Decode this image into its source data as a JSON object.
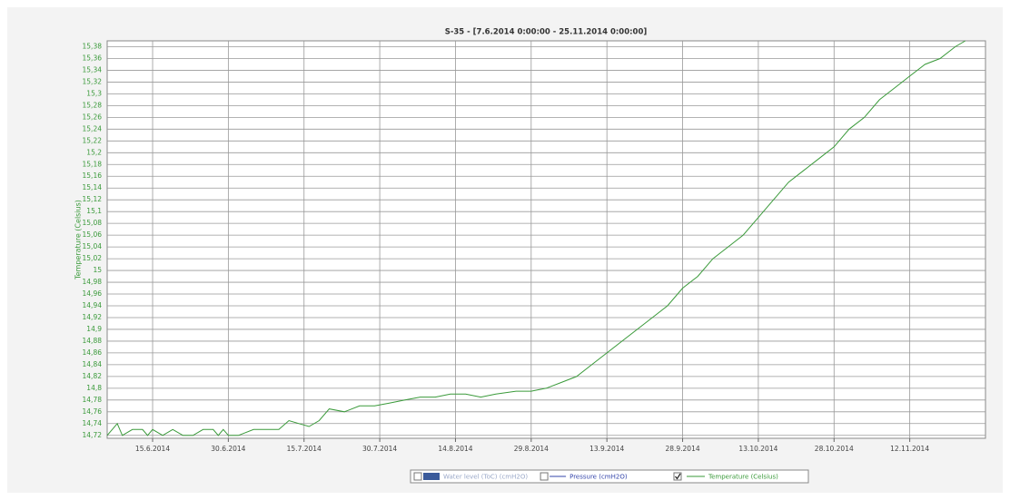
{
  "chart_data": {
    "type": "line",
    "title": "S-35 - [7.6.2014 0:00:00 - 25.11.2014 0:00:00]",
    "y_label": "Temperature (Celsius)",
    "grid": true,
    "legend_position": "bottom",
    "legend_unchecked": [
      "Water level (ToC) (cmH2O)",
      "Pressure (cmH2O)"
    ],
    "legend_unchecked_colors": [
      "#3a5a9a",
      "#3344aa"
    ],
    "x": [
      "2014-06-06",
      "2014-06-08",
      "2014-06-09",
      "2014-06-11",
      "2014-06-13",
      "2014-06-14",
      "2014-06-15",
      "2014-06-17",
      "2014-06-19",
      "2014-06-21",
      "2014-06-23",
      "2014-06-25",
      "2014-06-27",
      "2014-06-28",
      "2014-06-29",
      "2014-06-30",
      "2014-07-02",
      "2014-07-05",
      "2014-07-08",
      "2014-07-10",
      "2014-07-12",
      "2014-07-14",
      "2014-07-16",
      "2014-07-18",
      "2014-07-20",
      "2014-07-23",
      "2014-07-26",
      "2014-07-29",
      "2014-08-01",
      "2014-08-04",
      "2014-08-07",
      "2014-08-10",
      "2014-08-13",
      "2014-08-16",
      "2014-08-19",
      "2014-08-22",
      "2014-08-26",
      "2014-08-29",
      "2014-09-01",
      "2014-09-04",
      "2014-09-07",
      "2014-09-10",
      "2014-09-13",
      "2014-09-16",
      "2014-09-19",
      "2014-09-22",
      "2014-09-25",
      "2014-09-28",
      "2014-10-01",
      "2014-10-04",
      "2014-10-07",
      "2014-10-10",
      "2014-10-13",
      "2014-10-16",
      "2014-10-19",
      "2014-10-22",
      "2014-10-25",
      "2014-10-28",
      "2014-10-31",
      "2014-11-03",
      "2014-11-06",
      "2014-11-09",
      "2014-11-12",
      "2014-11-15",
      "2014-11-18",
      "2014-11-21",
      "2014-11-23"
    ],
    "series": [
      {
        "name": "Temperature (Celsius)",
        "color": "#3a9a3a",
        "values": [
          14.72,
          14.74,
          14.72,
          14.73,
          14.73,
          14.72,
          14.73,
          14.72,
          14.73,
          14.72,
          14.72,
          14.73,
          14.73,
          14.72,
          14.73,
          14.72,
          14.72,
          14.73,
          14.73,
          14.73,
          14.745,
          14.74,
          14.735,
          14.745,
          14.765,
          14.76,
          14.77,
          14.77,
          14.775,
          14.78,
          14.785,
          14.785,
          14.79,
          14.79,
          14.785,
          14.79,
          14.795,
          14.795,
          14.8,
          14.81,
          14.82,
          14.84,
          14.86,
          14.88,
          14.9,
          14.92,
          14.94,
          14.97,
          14.99,
          15.02,
          15.04,
          15.06,
          15.09,
          15.12,
          15.15,
          15.17,
          15.19,
          15.21,
          15.24,
          15.26,
          15.29,
          15.31,
          15.33,
          15.35,
          15.36,
          15.38,
          15.39
        ]
      }
    ],
    "xlim": [
      "2014-06-06",
      "2014-11-27"
    ],
    "xticks": [
      {
        "value": "2014-06-15",
        "label": "15.6.2014"
      },
      {
        "value": "2014-06-30",
        "label": "30.6.2014"
      },
      {
        "value": "2014-07-15",
        "label": "15.7.2014"
      },
      {
        "value": "2014-07-30",
        "label": "30.7.2014"
      },
      {
        "value": "2014-08-14",
        "label": "14.8.2014"
      },
      {
        "value": "2014-08-29",
        "label": "29.8.2014"
      },
      {
        "value": "2014-09-13",
        "label": "13.9.2014"
      },
      {
        "value": "2014-09-28",
        "label": "28.9.2014"
      },
      {
        "value": "2014-10-13",
        "label": "13.10.2014"
      },
      {
        "value": "2014-10-28",
        "label": "28.10.2014"
      },
      {
        "value": "2014-11-12",
        "label": "12.11.2014"
      }
    ],
    "ylim": [
      14.715,
      15.39
    ],
    "yticks": [
      {
        "value": 14.72,
        "label": "14,72"
      },
      {
        "value": 14.74,
        "label": "14,74"
      },
      {
        "value": 14.76,
        "label": "14,76"
      },
      {
        "value": 14.78,
        "label": "14,78"
      },
      {
        "value": 14.8,
        "label": "14,8"
      },
      {
        "value": 14.82,
        "label": "14,82"
      },
      {
        "value": 14.84,
        "label": "14,84"
      },
      {
        "value": 14.86,
        "label": "14,86"
      },
      {
        "value": 14.88,
        "label": "14,88"
      },
      {
        "value": 14.9,
        "label": "14,9"
      },
      {
        "value": 14.92,
        "label": "14,92"
      },
      {
        "value": 14.94,
        "label": "14,94"
      },
      {
        "value": 14.96,
        "label": "14,96"
      },
      {
        "value": 14.98,
        "label": "14,98"
      },
      15,
      {
        "value": 15.02,
        "label": "15,02"
      },
      {
        "value": 15.04,
        "label": "15,04"
      },
      {
        "value": 15.06,
        "label": "15,06"
      },
      {
        "value": 15.08,
        "label": "15,08"
      },
      {
        "value": 15.1,
        "label": "15,1"
      },
      {
        "value": 15.12,
        "label": "15,12"
      },
      {
        "value": 15.14,
        "label": "15,14"
      },
      {
        "value": 15.16,
        "label": "15,16"
      },
      {
        "value": 15.18,
        "label": "15,18"
      },
      {
        "value": 15.2,
        "label": "15,2"
      },
      {
        "value": 15.22,
        "label": "15,22"
      },
      {
        "value": 15.24,
        "label": "15,24"
      },
      {
        "value": 15.26,
        "label": "15,26"
      },
      {
        "value": 15.28,
        "label": "15,28"
      },
      {
        "value": 15.3,
        "label": "15,3"
      },
      {
        "value": 15.32,
        "label": "15,32"
      },
      {
        "value": 15.34,
        "label": "15,34"
      },
      {
        "value": 15.36,
        "label": "15,36"
      },
      {
        "value": 15.38,
        "label": "15,38"
      }
    ]
  }
}
